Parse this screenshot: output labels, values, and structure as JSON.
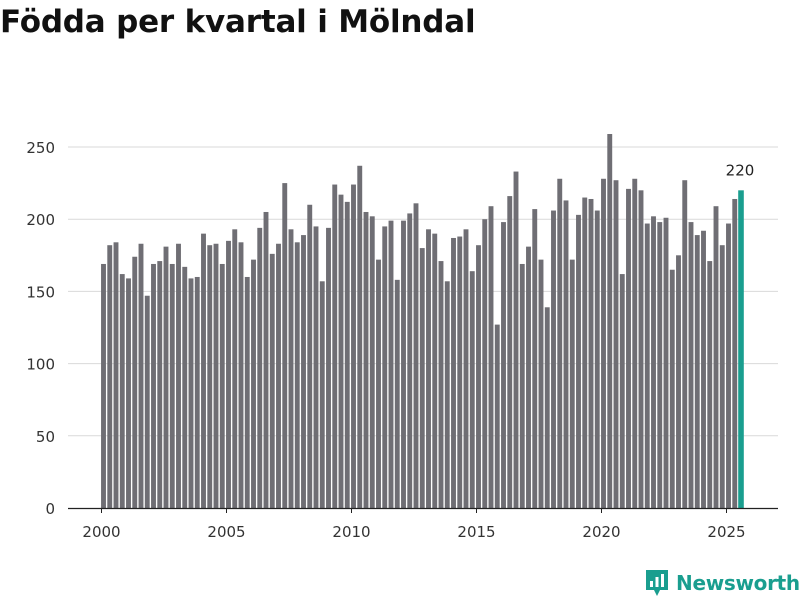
{
  "chart_data": {
    "type": "bar",
    "title": "Födda per kvartal i Mölndal",
    "xlabel": "",
    "ylabel": "",
    "ylim": [
      0,
      270
    ],
    "yticks": [
      0,
      50,
      100,
      150,
      200,
      250
    ],
    "xticks": [
      "2000",
      "2005",
      "2010",
      "2015",
      "2020",
      "2025"
    ],
    "categories": [
      "2000 K1",
      "2000 K2",
      "2000 K3",
      "2000 K4",
      "2001 K1",
      "2001 K2",
      "2001 K3",
      "2001 K4",
      "2002 K1",
      "2002 K2",
      "2002 K3",
      "2002 K4",
      "2003 K1",
      "2003 K2",
      "2003 K3",
      "2003 K4",
      "2004 K1",
      "2004 K2",
      "2004 K3",
      "2004 K4",
      "2005 K1",
      "2005 K2",
      "2005 K3",
      "2005 K4",
      "2006 K1",
      "2006 K2",
      "2006 K3",
      "2006 K4",
      "2007 K1",
      "2007 K2",
      "2007 K3",
      "2007 K4",
      "2008 K1",
      "2008 K2",
      "2008 K3",
      "2008 K4",
      "2009 K1",
      "2009 K2",
      "2009 K3",
      "2009 K4",
      "2010 K1",
      "2010 K2",
      "2010 K3",
      "2010 K4",
      "2011 K1",
      "2011 K2",
      "2011 K3",
      "2011 K4",
      "2012 K1",
      "2012 K2",
      "2012 K3",
      "2012 K4",
      "2013 K1",
      "2013 K2",
      "2013 K3",
      "2013 K4",
      "2014 K1",
      "2014 K2",
      "2014 K3",
      "2014 K4",
      "2015 K1",
      "2015 K2",
      "2015 K3",
      "2015 K4",
      "2016 K1",
      "2016 K2",
      "2016 K3",
      "2016 K4",
      "2017 K1",
      "2017 K2",
      "2017 K3",
      "2017 K4",
      "2018 K1",
      "2018 K2",
      "2018 K3",
      "2018 K4",
      "2019 K1",
      "2019 K2",
      "2019 K3",
      "2019 K4",
      "2020 K1",
      "2020 K2",
      "2020 K3",
      "2020 K4",
      "2021 K1",
      "2021 K2",
      "2021 K3",
      "2021 K4",
      "2022 K1",
      "2022 K2",
      "2022 K3",
      "2022 K4",
      "2023 K1",
      "2023 K2",
      "2023 K3",
      "2023 K4",
      "2024 K1",
      "2024 K2",
      "2024 K3",
      "2024 K4",
      "2025 K1",
      "2025 K2",
      "2025 K3"
    ],
    "values": [
      169,
      182,
      184,
      162,
      159,
      174,
      183,
      147,
      169,
      171,
      181,
      169,
      183,
      167,
      159,
      160,
      190,
      182,
      183,
      169,
      185,
      193,
      184,
      160,
      172,
      194,
      205,
      176,
      183,
      225,
      193,
      184,
      189,
      210,
      195,
      157,
      194,
      224,
      217,
      212,
      224,
      237,
      205,
      202,
      172,
      195,
      199,
      158,
      199,
      204,
      211,
      180,
      193,
      190,
      171,
      157,
      187,
      188,
      193,
      164,
      182,
      200,
      209,
      127,
      198,
      216,
      233,
      169,
      181,
      207,
      172,
      139,
      206,
      228,
      213,
      172,
      203,
      215,
      214,
      206,
      228,
      259,
      227,
      162,
      221,
      228,
      220,
      197,
      202,
      198,
      201,
      165,
      175,
      227,
      198,
      189,
      192,
      171,
      209,
      182,
      197,
      214,
      220
    ],
    "highlight": {
      "index": 102,
      "label": "220",
      "color": "#1a9e8f"
    },
    "bar_color": "#6f6e74",
    "grid": true
  },
  "brand": {
    "name": "Newsworthy",
    "color": "#1a9e8f"
  }
}
